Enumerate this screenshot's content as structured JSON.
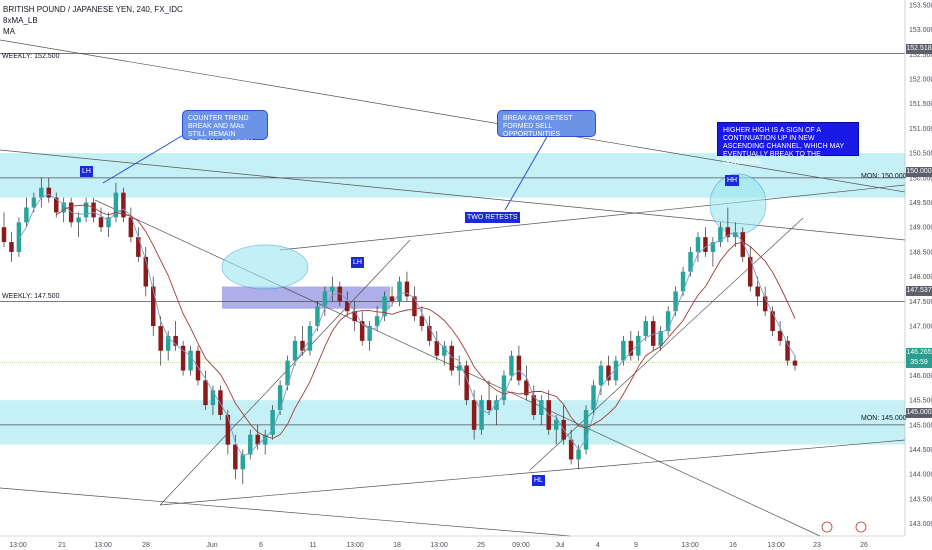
{
  "header": {
    "symbol_line": "BRITISH POUND / JAPANESE YEN, 240, FX_IDC",
    "indicator1": "8xMA_LB",
    "indicator2": "MA"
  },
  "levels": {
    "weekly_high_label": "WEEKLY: 152.500",
    "weekly_mid_label": "WEEKLY: 147.500",
    "mon_150_label": "MON: 150.000",
    "mon_145_label": "MON: 145.000"
  },
  "annotations": {
    "counter_trend": "COUNTER TREND BREAK AND MAs STILL REMAIN OVERALL BEARISH",
    "break_retest": "BREAK AND RETEST FORMED SELL OPPORTUNITIES",
    "two_retests": "TWO RETESTS",
    "higher_high": "HIGHER HIGH IS A SIGN OF A CONTINUATION UP IN NEW ASCENDING CHANNEL, WHICH MAY EVENTUALLY BREAK TO THE DOWNSIDE.",
    "lh1": "LH",
    "lh2": "LH",
    "hh": "HH",
    "hl": "HL"
  },
  "price_axis": {
    "ticks": [
      "153.500",
      "153.000",
      "152.500",
      "152.000",
      "151.500",
      "151.000",
      "150.500",
      "150.000",
      "149.500",
      "149.000",
      "148.500",
      "148.000",
      "147.500",
      "147.000",
      "146.500",
      "146.000",
      "145.500",
      "145.000",
      "144.500",
      "144.000",
      "143.500",
      "143.000"
    ],
    "tag_152": "152.518",
    "tag_150": "150.000",
    "tag_1475": "147.537",
    "tag_last": "146.265",
    "tag_time": "35:59",
    "tag_145": "145.000"
  },
  "time_axis": {
    "ticks": [
      "13:00",
      "21",
      "13:00",
      "28",
      "Jun",
      "6",
      "11",
      "13:00",
      "18",
      "13:00",
      "25",
      "09:00",
      "Jul",
      "4",
      "9",
      "13:00",
      "16",
      "13:00",
      "23",
      "26"
    ]
  },
  "colors": {
    "zone": "#b2ebf2",
    "up": "#26a69a",
    "down": "#8b1a1a",
    "wick": "#2c2c2c",
    "ma_fast": "#7a9bc9",
    "ma_slow": "#a33a3a",
    "trend": "#555555"
  },
  "chart_data": {
    "type": "candlestick",
    "y_range": [
      142.75,
      153.6
    ],
    "x_range": [
      0,
      230
    ],
    "candles": [
      [
        149.0,
        149.3,
        148.6,
        148.7
      ],
      [
        148.7,
        148.9,
        148.3,
        148.5
      ],
      [
        148.5,
        149.2,
        148.4,
        149.1
      ],
      [
        149.1,
        149.6,
        149.0,
        149.4
      ],
      [
        149.4,
        149.7,
        149.3,
        149.6
      ],
      [
        149.6,
        150.0,
        149.4,
        149.8
      ],
      [
        149.8,
        150.0,
        149.5,
        149.6
      ],
      [
        149.6,
        149.7,
        149.2,
        149.3
      ],
      [
        149.3,
        149.6,
        149.1,
        149.5
      ],
      [
        149.5,
        149.6,
        149.0,
        149.1
      ],
      [
        149.1,
        149.3,
        148.8,
        149.2
      ],
      [
        149.2,
        149.6,
        149.1,
        149.5
      ],
      [
        149.5,
        149.6,
        149.1,
        149.2
      ],
      [
        149.2,
        149.4,
        148.9,
        149.0
      ],
      [
        149.0,
        149.3,
        148.8,
        149.2
      ],
      [
        149.2,
        149.9,
        149.1,
        149.7
      ],
      [
        149.7,
        149.8,
        149.1,
        149.2
      ],
      [
        149.2,
        149.4,
        148.7,
        148.8
      ],
      [
        148.8,
        149.0,
        148.3,
        148.4
      ],
      [
        148.4,
        148.6,
        147.6,
        147.8
      ],
      [
        147.8,
        148.0,
        146.8,
        147.0
      ],
      [
        147.0,
        147.2,
        146.2,
        146.5
      ],
      [
        146.5,
        146.9,
        146.3,
        146.8
      ],
      [
        146.8,
        147.1,
        146.5,
        146.6
      ],
      [
        146.6,
        146.7,
        146.0,
        146.1
      ],
      [
        146.1,
        146.6,
        146.0,
        146.5
      ],
      [
        146.5,
        146.6,
        145.8,
        145.9
      ],
      [
        145.9,
        146.1,
        145.3,
        145.4
      ],
      [
        145.4,
        145.8,
        145.2,
        145.7
      ],
      [
        145.7,
        145.8,
        145.1,
        145.2
      ],
      [
        145.2,
        145.3,
        144.4,
        144.6
      ],
      [
        144.6,
        144.8,
        143.9,
        144.1
      ],
      [
        144.1,
        144.5,
        143.8,
        144.4
      ],
      [
        144.4,
        144.9,
        144.3,
        144.8
      ],
      [
        144.8,
        145.0,
        144.5,
        144.6
      ],
      [
        144.6,
        144.9,
        144.4,
        144.8
      ],
      [
        144.8,
        145.4,
        144.7,
        145.3
      ],
      [
        145.3,
        145.9,
        145.2,
        145.8
      ],
      [
        145.8,
        146.4,
        145.7,
        146.3
      ],
      [
        146.3,
        146.8,
        146.2,
        146.7
      ],
      [
        146.7,
        147.0,
        146.4,
        146.5
      ],
      [
        146.5,
        147.1,
        146.4,
        147.0
      ],
      [
        147.0,
        147.5,
        146.9,
        147.4
      ],
      [
        147.4,
        147.8,
        147.2,
        147.7
      ],
      [
        147.7,
        148.0,
        147.5,
        147.8
      ],
      [
        147.8,
        147.9,
        147.4,
        147.5
      ],
      [
        147.5,
        147.7,
        147.2,
        147.3
      ],
      [
        147.3,
        147.5,
        146.9,
        147.1
      ],
      [
        147.1,
        147.3,
        146.6,
        146.7
      ],
      [
        146.7,
        147.1,
        146.5,
        147.0
      ],
      [
        147.0,
        147.4,
        146.9,
        147.2
      ],
      [
        147.2,
        147.7,
        147.1,
        147.6
      ],
      [
        147.6,
        147.8,
        147.4,
        147.5
      ],
      [
        147.5,
        148.0,
        147.4,
        147.9
      ],
      [
        147.9,
        148.1,
        147.5,
        147.6
      ],
      [
        147.6,
        147.8,
        147.1,
        147.2
      ],
      [
        147.2,
        147.4,
        146.9,
        147.0
      ],
      [
        147.0,
        147.2,
        146.6,
        146.7
      ],
      [
        146.7,
        146.9,
        146.3,
        146.4
      ],
      [
        146.4,
        146.7,
        146.2,
        146.6
      ],
      [
        146.6,
        146.7,
        146.0,
        146.1
      ],
      [
        146.1,
        146.4,
        145.8,
        146.2
      ],
      [
        146.2,
        146.3,
        145.4,
        145.5
      ],
      [
        145.5,
        145.7,
        144.7,
        144.9
      ],
      [
        144.9,
        145.6,
        144.8,
        145.5
      ],
      [
        145.5,
        145.9,
        145.2,
        145.3
      ],
      [
        145.3,
        145.6,
        145.0,
        145.5
      ],
      [
        145.5,
        146.1,
        145.4,
        146.0
      ],
      [
        146.0,
        146.5,
        145.9,
        146.4
      ],
      [
        146.4,
        146.6,
        145.8,
        145.9
      ],
      [
        145.9,
        146.2,
        145.5,
        145.6
      ],
      [
        145.6,
        145.8,
        145.1,
        145.2
      ],
      [
        145.2,
        145.6,
        145.0,
        145.5
      ],
      [
        145.5,
        145.7,
        144.8,
        144.9
      ],
      [
        144.9,
        145.2,
        144.6,
        145.1
      ],
      [
        145.1,
        145.4,
        144.6,
        144.7
      ],
      [
        144.7,
        144.9,
        144.2,
        144.3
      ],
      [
        144.3,
        144.6,
        144.1,
        144.5
      ],
      [
        144.5,
        145.4,
        144.4,
        145.3
      ],
      [
        145.3,
        145.9,
        145.2,
        145.8
      ],
      [
        145.8,
        146.3,
        145.6,
        146.2
      ],
      [
        146.2,
        146.4,
        145.8,
        145.9
      ],
      [
        145.9,
        146.4,
        145.8,
        146.3
      ],
      [
        146.3,
        146.8,
        146.2,
        146.7
      ],
      [
        146.7,
        146.9,
        146.3,
        146.4
      ],
      [
        146.4,
        146.9,
        146.3,
        146.8
      ],
      [
        146.8,
        147.2,
        146.7,
        147.1
      ],
      [
        147.1,
        147.2,
        146.5,
        146.6
      ],
      [
        146.6,
        147.0,
        146.5,
        146.9
      ],
      [
        146.9,
        147.4,
        146.8,
        147.3
      ],
      [
        147.3,
        147.8,
        147.2,
        147.7
      ],
      [
        147.7,
        148.2,
        147.6,
        148.1
      ],
      [
        148.1,
        148.6,
        148.0,
        148.5
      ],
      [
        148.5,
        148.9,
        148.3,
        148.8
      ],
      [
        148.8,
        149.0,
        148.4,
        148.5
      ],
      [
        148.5,
        148.8,
        148.2,
        148.7
      ],
      [
        148.7,
        149.1,
        148.6,
        149.0
      ],
      [
        149.0,
        149.4,
        148.7,
        148.8
      ],
      [
        148.8,
        149.1,
        148.6,
        148.9
      ],
      [
        148.9,
        149.0,
        148.3,
        148.4
      ],
      [
        148.4,
        148.6,
        147.7,
        147.8
      ],
      [
        147.8,
        148.0,
        147.4,
        147.6
      ],
      [
        147.6,
        147.8,
        147.2,
        147.3
      ],
      [
        147.3,
        147.4,
        146.8,
        146.9
      ],
      [
        146.9,
        147.1,
        146.6,
        146.7
      ],
      [
        146.7,
        146.8,
        146.2,
        146.3
      ],
      [
        146.3,
        146.4,
        146.1,
        146.2
      ]
    ]
  }
}
